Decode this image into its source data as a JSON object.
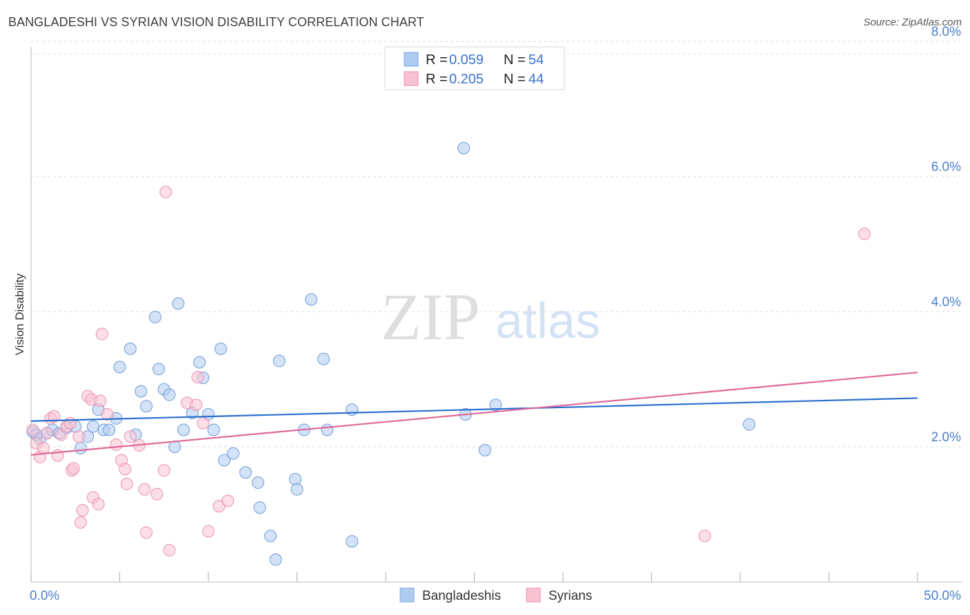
{
  "title": "BANGLADESHI VS SYRIAN VISION DISABILITY CORRELATION CHART",
  "source": "Source: ZipAtlas.com",
  "watermark": {
    "zip": "ZIP",
    "atlas": "atlas"
  },
  "legend": [
    {
      "r_label": "R =",
      "r_value": "0.059",
      "n_label": "N =",
      "n_value": "54",
      "color": "#aecbf0",
      "stroke": "#7aa5e0"
    },
    {
      "r_label": "R =",
      "r_value": "0.205",
      "n_label": "N =",
      "n_value": "44",
      "color": "#f9c2d3",
      "stroke": "#ec8fb0"
    }
  ],
  "chart_data": {
    "type": "scatter",
    "title": "BANGLADESHI VS SYRIAN VISION DISABILITY CORRELATION CHART",
    "xlabel": "",
    "ylabel": "Vision Disability",
    "xlim": [
      0,
      50
    ],
    "ylim": [
      0,
      8
    ],
    "x_tick_labels": [
      "0.0%",
      "50.0%"
    ],
    "y_ticks": [
      2,
      4,
      6,
      8
    ],
    "y_tick_labels": [
      "2.0%",
      "4.0%",
      "6.0%",
      "8.0%"
    ],
    "grid": true,
    "legend_position": "top-center",
    "series": [
      {
        "name": "Bangladeshis",
        "color": "#aecbf0",
        "stroke": "#6f9bd9",
        "line_color": "#2a6fce",
        "trend": [
          [
            0,
            2.38
          ],
          [
            50,
            2.72
          ]
        ],
        "points": [
          [
            0.1,
            2.22
          ],
          [
            0.5,
            2.12
          ],
          [
            0.9,
            2.2
          ],
          [
            1.2,
            2.25
          ],
          [
            1.6,
            2.2
          ],
          [
            2.0,
            2.28
          ],
          [
            2.5,
            2.3
          ],
          [
            2.8,
            1.98
          ],
          [
            3.2,
            2.15
          ],
          [
            3.5,
            2.3
          ],
          [
            3.8,
            2.55
          ],
          [
            4.1,
            2.25
          ],
          [
            4.4,
            2.25
          ],
          [
            4.8,
            2.42
          ],
          [
            5.0,
            3.18
          ],
          [
            5.6,
            3.45
          ],
          [
            5.9,
            2.18
          ],
          [
            6.2,
            2.82
          ],
          [
            6.5,
            2.6
          ],
          [
            7.0,
            3.92
          ],
          [
            7.2,
            3.15
          ],
          [
            7.5,
            2.85
          ],
          [
            7.8,
            2.77
          ],
          [
            8.1,
            2.0
          ],
          [
            8.3,
            4.12
          ],
          [
            8.6,
            2.25
          ],
          [
            9.1,
            2.5
          ],
          [
            9.5,
            3.25
          ],
          [
            9.7,
            3.02
          ],
          [
            10.0,
            2.48
          ],
          [
            10.3,
            2.25
          ],
          [
            10.7,
            3.45
          ],
          [
            10.9,
            1.8
          ],
          [
            11.4,
            1.9
          ],
          [
            12.1,
            1.62
          ],
          [
            12.8,
            1.47
          ],
          [
            12.9,
            1.1
          ],
          [
            13.5,
            0.68
          ],
          [
            13.8,
            0.33
          ],
          [
            14.0,
            3.27
          ],
          [
            14.9,
            1.52
          ],
          [
            15.0,
            1.37
          ],
          [
            15.4,
            2.25
          ],
          [
            15.8,
            4.18
          ],
          [
            16.5,
            3.3
          ],
          [
            16.7,
            2.25
          ],
          [
            18.1,
            2.55
          ],
          [
            18.1,
            0.6
          ],
          [
            24.4,
            6.42
          ],
          [
            24.5,
            2.48
          ],
          [
            25.6,
            1.95
          ],
          [
            26.2,
            2.62
          ],
          [
            40.5,
            2.33
          ],
          [
            0.3,
            2.18
          ]
        ]
      },
      {
        "name": "Syrians",
        "color": "#f9c2d3",
        "stroke": "#ec8fb0",
        "line_color": "#e0689a",
        "trend": [
          [
            0,
            1.88
          ],
          [
            50,
            3.1
          ]
        ],
        "points": [
          [
            0.1,
            2.25
          ],
          [
            0.3,
            2.05
          ],
          [
            0.5,
            1.85
          ],
          [
            0.7,
            1.98
          ],
          [
            0.9,
            2.2
          ],
          [
            1.1,
            2.42
          ],
          [
            1.3,
            2.45
          ],
          [
            1.5,
            1.87
          ],
          [
            1.7,
            2.18
          ],
          [
            2.0,
            2.3
          ],
          [
            2.2,
            2.35
          ],
          [
            2.3,
            1.65
          ],
          [
            2.4,
            1.68
          ],
          [
            2.7,
            2.15
          ],
          [
            2.8,
            0.88
          ],
          [
            2.9,
            1.06
          ],
          [
            3.2,
            2.75
          ],
          [
            3.4,
            2.7
          ],
          [
            3.5,
            1.25
          ],
          [
            3.8,
            1.15
          ],
          [
            3.9,
            2.68
          ],
          [
            4.0,
            3.67
          ],
          [
            4.3,
            2.48
          ],
          [
            4.8,
            2.03
          ],
          [
            5.1,
            1.8
          ],
          [
            5.3,
            1.67
          ],
          [
            5.4,
            1.45
          ],
          [
            5.6,
            2.15
          ],
          [
            6.1,
            2.02
          ],
          [
            6.4,
            1.37
          ],
          [
            6.5,
            0.73
          ],
          [
            7.1,
            1.3
          ],
          [
            7.5,
            1.65
          ],
          [
            7.6,
            5.77
          ],
          [
            7.8,
            0.47
          ],
          [
            8.8,
            2.65
          ],
          [
            9.3,
            2.62
          ],
          [
            9.4,
            3.03
          ],
          [
            9.7,
            2.35
          ],
          [
            10.0,
            0.75
          ],
          [
            10.6,
            1.12
          ],
          [
            11.1,
            1.2
          ],
          [
            38.0,
            0.68
          ],
          [
            47.0,
            5.15
          ]
        ]
      }
    ]
  }
}
